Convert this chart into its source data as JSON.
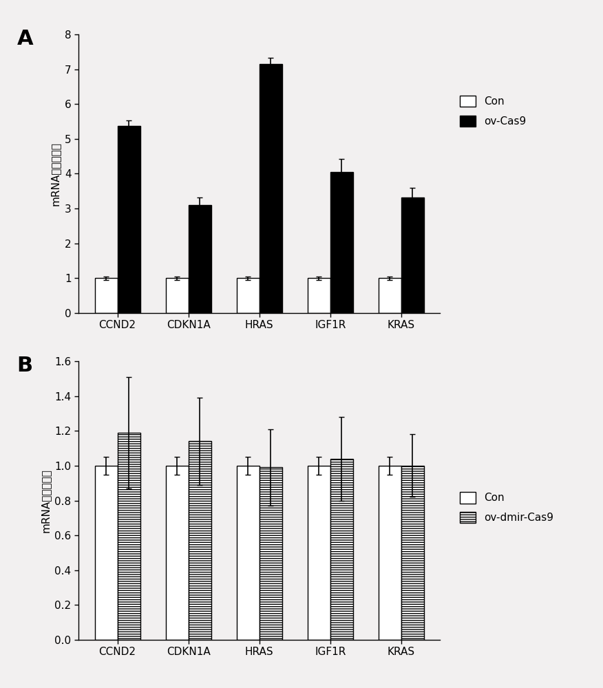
{
  "panel_A": {
    "categories": [
      "CCND2",
      "CDKN1A",
      "HRAS",
      "IGF1R",
      "KRAS"
    ],
    "con_values": [
      1.0,
      1.0,
      1.0,
      1.0,
      1.0
    ],
    "con_errors": [
      0.05,
      0.05,
      0.05,
      0.05,
      0.05
    ],
    "cas9_values": [
      5.38,
      3.1,
      7.15,
      4.05,
      3.32
    ],
    "cas9_errors": [
      0.15,
      0.22,
      0.18,
      0.38,
      0.28
    ],
    "ylim": [
      0,
      8
    ],
    "yticks": [
      0,
      1,
      2,
      3,
      4,
      5,
      6,
      7,
      8
    ],
    "ylabel": "mRNA相对表达量",
    "legend_labels": [
      "Con",
      "ov-Cas9"
    ],
    "panel_label": "A"
  },
  "panel_B": {
    "categories": [
      "CCND2",
      "CDKN1A",
      "HRAS",
      "IGF1R",
      "KRAS"
    ],
    "con_values": [
      1.0,
      1.0,
      1.0,
      1.0,
      1.0
    ],
    "con_errors": [
      0.05,
      0.05,
      0.05,
      0.05,
      0.05
    ],
    "dmir_values": [
      1.19,
      1.14,
      0.99,
      1.04,
      1.0
    ],
    "dmir_errors": [
      0.32,
      0.25,
      0.22,
      0.24,
      0.18
    ],
    "ylim": [
      0,
      1.6
    ],
    "yticks": [
      0,
      0.2,
      0.4,
      0.6,
      0.8,
      1.0,
      1.2,
      1.4,
      1.6
    ],
    "ylabel": "mRNA相对表达量",
    "legend_labels": [
      "Con",
      "ov-dmir-Cas9"
    ],
    "panel_label": "B"
  },
  "bar_width": 0.32,
  "bg_color": "#f2f0f0",
  "font_size": 11,
  "axis_font_size": 11,
  "label_font_size": 22
}
